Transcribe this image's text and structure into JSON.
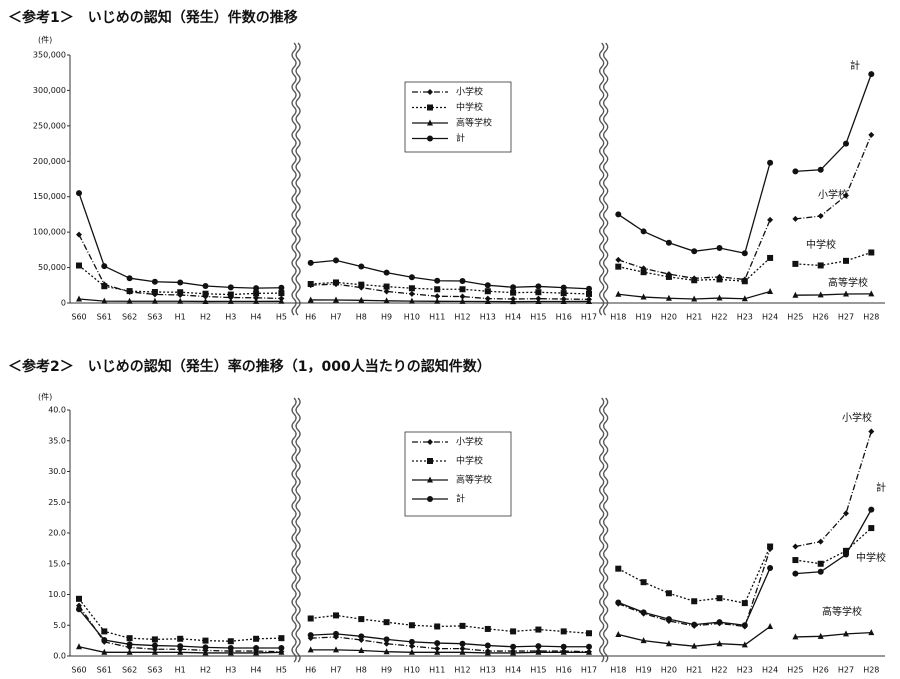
{
  "chart_data": [
    {
      "type": "line",
      "title": "＜参考1＞　いじめの認知（発生）件数の推移",
      "y_unit": "(件)",
      "categories": [
        "S60",
        "S61",
        "S62",
        "S63",
        "H1",
        "H2",
        "H3",
        "H4",
        "H5",
        "H6",
        "H7",
        "H8",
        "H9",
        "H10",
        "H11",
        "H12",
        "H13",
        "H14",
        "H15",
        "H16",
        "H17",
        "H18",
        "H19",
        "H20",
        "H21",
        "H22",
        "H23",
        "H24",
        "H25",
        "H26",
        "H27",
        "H28"
      ],
      "axis_breaks": [
        "H5",
        "H17"
      ],
      "line_breaks": [
        "H5",
        "H17",
        "H24"
      ],
      "ylim": [
        0,
        350000
      ],
      "yticks": [
        {
          "value": 0,
          "label": "0"
        },
        {
          "value": 50000,
          "label": "50,000"
        },
        {
          "value": 100000,
          "label": "100,000"
        },
        {
          "value": 150000,
          "label": "150,000"
        },
        {
          "value": 200000,
          "label": "200,000"
        },
        {
          "value": 250000,
          "label": "250,000"
        },
        {
          "value": 300000,
          "label": "300,000"
        },
        {
          "value": 350000,
          "label": "350,000"
        }
      ],
      "series": [
        {
          "name": "小学校",
          "color": "#111",
          "marker": "diamond",
          "dash": "dashdot",
          "values": [
            96500,
            26300,
            15700,
            12100,
            11300,
            9200,
            7700,
            7300,
            6390,
            25300,
            26600,
            21700,
            16300,
            12900,
            9500,
            9100,
            6200,
            5600,
            6100,
            5600,
            5100,
            60900,
            48900,
            40800,
            34800,
            36900,
            33100,
            117400,
            118700,
            122700,
            151700,
            237300
          ]
        },
        {
          "name": "中学校",
          "color": "#111",
          "marker": "square",
          "dash": "dotted",
          "values": [
            52900,
            23700,
            16800,
            15500,
            15200,
            13100,
            11900,
            13600,
            14000,
            26800,
            29000,
            25900,
            23200,
            20800,
            19400,
            19400,
            16600,
            14600,
            15200,
            13900,
            12800,
            51300,
            43500,
            36800,
            32100,
            33300,
            30700,
            63600,
            55200,
            53000,
            59500,
            71300
          ]
        },
        {
          "name": "高等学校",
          "color": "#111",
          "marker": "triangle",
          "dash": "solid",
          "values": [
            5700,
            2600,
            2500,
            2500,
            2500,
            2200,
            2300,
            2300,
            2400,
            4300,
            4200,
            3800,
            3100,
            2600,
            2400,
            2300,
            2100,
            1900,
            2100,
            2100,
            2200,
            12300,
            8400,
            6700,
            5600,
            7000,
            6000,
            16300,
            11000,
            11400,
            12700,
            12900
          ]
        },
        {
          "name": "計",
          "color": "#111",
          "marker": "circle",
          "dash": "solid",
          "values": [
            155000,
            52000,
            35000,
            30000,
            29000,
            24000,
            22000,
            21000,
            21500,
            56600,
            60100,
            51500,
            42800,
            36400,
            31400,
            31000,
            25000,
            22200,
            23400,
            21700,
            20100,
            125000,
            101000,
            85000,
            73000,
            77600,
            70200,
            198000,
            185800,
            188000,
            225000,
            323000
          ]
        }
      ],
      "annotations": [
        "計",
        "小学校",
        "中学校",
        "高等学校"
      ]
    },
    {
      "type": "line",
      "title": "＜参考2＞　いじめの認知（発生）率の推移（1，000人当たりの認知件数）",
      "y_unit": "(件)",
      "categories": [
        "S60",
        "S61",
        "S62",
        "S63",
        "H1",
        "H2",
        "H3",
        "H4",
        "H5",
        "H6",
        "H7",
        "H8",
        "H9",
        "H10",
        "H11",
        "H12",
        "H13",
        "H14",
        "H15",
        "H16",
        "H17",
        "H18",
        "H19",
        "H20",
        "H21",
        "H22",
        "H23",
        "H24",
        "H25",
        "H26",
        "H27",
        "H28"
      ],
      "axis_breaks": [
        "H5",
        "H17"
      ],
      "line_breaks": [
        "H5",
        "H17",
        "H24"
      ],
      "ylim": [
        0,
        40
      ],
      "yticks": [
        {
          "value": 0,
          "label": "0.0"
        },
        {
          "value": 5,
          "label": "5.0"
        },
        {
          "value": 10,
          "label": "10.0"
        },
        {
          "value": 15,
          "label": "15.0"
        },
        {
          "value": 20,
          "label": "20.0"
        },
        {
          "value": 25,
          "label": "25.0"
        },
        {
          "value": 30,
          "label": "30.0"
        },
        {
          "value": 35,
          "label": "35.0"
        },
        {
          "value": 40,
          "label": "40.0"
        }
      ],
      "series": [
        {
          "name": "小学校",
          "color": "#111",
          "marker": "diamond",
          "dash": "dashdot",
          "values": [
            8.2,
            2.3,
            1.4,
            1.1,
            1.1,
            0.9,
            0.8,
            0.8,
            0.7,
            2.9,
            3.1,
            2.6,
            2.0,
            1.6,
            1.2,
            1.2,
            0.8,
            0.8,
            0.8,
            0.8,
            0.7,
            8.5,
            6.9,
            5.7,
            4.9,
            5.3,
            4.8,
            17.4,
            17.8,
            18.6,
            23.2,
            36.5
          ]
        },
        {
          "name": "中学校",
          "color": "#111",
          "marker": "square",
          "dash": "dotted",
          "values": [
            9.3,
            4.0,
            2.9,
            2.7,
            2.8,
            2.5,
            2.4,
            2.8,
            2.9,
            6.1,
            6.6,
            6.0,
            5.5,
            5.0,
            4.8,
            4.9,
            4.4,
            4.0,
            4.3,
            4.0,
            3.7,
            14.2,
            12.0,
            10.2,
            8.9,
            9.4,
            8.6,
            17.8,
            15.6,
            15.0,
            17.1,
            20.8
          ]
        },
        {
          "name": "高等学校",
          "color": "#111",
          "marker": "triangle",
          "dash": "solid",
          "values": [
            1.5,
            0.6,
            0.6,
            0.6,
            0.6,
            0.5,
            0.5,
            0.5,
            0.6,
            1.0,
            1.0,
            0.9,
            0.7,
            0.6,
            0.6,
            0.6,
            0.5,
            0.5,
            0.6,
            0.6,
            0.6,
            3.5,
            2.5,
            2.0,
            1.6,
            2.0,
            1.8,
            4.8,
            3.1,
            3.2,
            3.6,
            3.8
          ]
        },
        {
          "name": "計",
          "color": "#111",
          "marker": "circle",
          "dash": "solid",
          "values": [
            7.6,
            2.6,
            1.9,
            1.7,
            1.6,
            1.4,
            1.3,
            1.3,
            1.3,
            3.4,
            3.6,
            3.2,
            2.7,
            2.3,
            2.1,
            2.0,
            1.7,
            1.5,
            1.6,
            1.5,
            1.5,
            8.7,
            7.1,
            6.0,
            5.1,
            5.5,
            5.0,
            14.3,
            13.4,
            13.7,
            16.5,
            23.8
          ]
        }
      ],
      "annotations": [
        "小学校",
        "計",
        "中学校",
        "高等学校"
      ]
    }
  ]
}
